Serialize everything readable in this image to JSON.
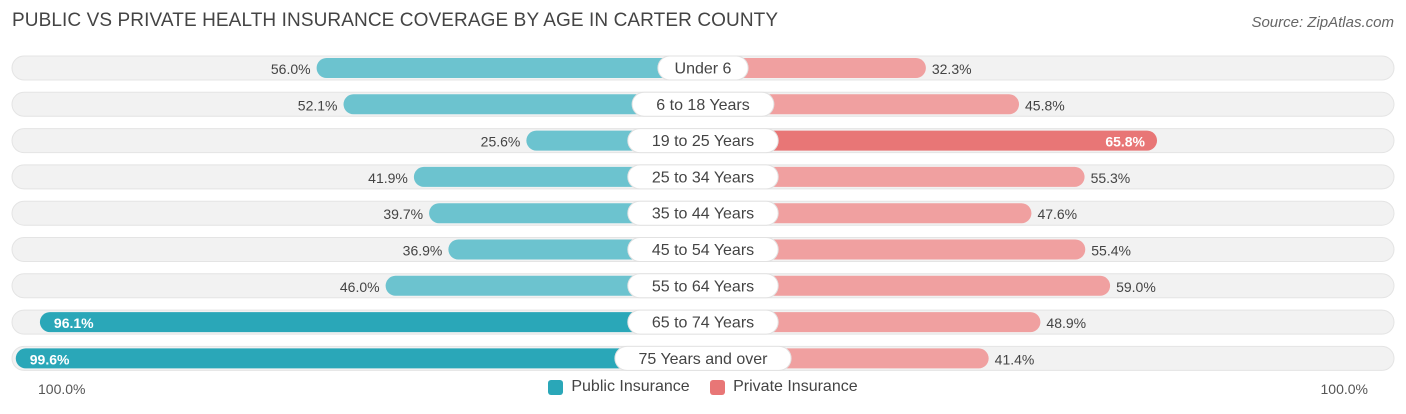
{
  "header": {
    "title": "PUBLIC VS PRIVATE HEALTH INSURANCE COVERAGE BY AGE IN CARTER COUNTY",
    "source": "Source: ZipAtlas.com"
  },
  "axis": {
    "left_label": "100.0%",
    "right_label": "100.0%"
  },
  "legend": {
    "public_label": "Public Insurance",
    "private_label": "Private Insurance"
  },
  "colors": {
    "public": "#6cc3cf",
    "public_strong": "#2aa7b8",
    "private": "#f0a0a0",
    "private_strong": "#e87676",
    "track": "#f2f2f2"
  },
  "chart_data": {
    "type": "bar",
    "orientation": "horizontal-diverging",
    "title": "PUBLIC VS PRIVATE HEALTH INSURANCE COVERAGE BY AGE IN CARTER COUNTY",
    "categories": [
      "Under 6",
      "6 to 18 Years",
      "19 to 25 Years",
      "25 to 34 Years",
      "35 to 44 Years",
      "45 to 54 Years",
      "55 to 64 Years",
      "65 to 74 Years",
      "75 Years and over"
    ],
    "series": [
      {
        "name": "Public Insurance",
        "values": [
          56.0,
          52.1,
          25.6,
          41.9,
          39.7,
          36.9,
          46.0,
          96.1,
          99.6
        ],
        "labels": [
          "56.0%",
          "52.1%",
          "25.6%",
          "41.9%",
          "39.7%",
          "36.9%",
          "46.0%",
          "96.1%",
          "99.6%"
        ]
      },
      {
        "name": "Private Insurance",
        "values": [
          32.3,
          45.8,
          65.8,
          55.3,
          47.6,
          55.4,
          59.0,
          48.9,
          41.4
        ],
        "labels": [
          "32.3%",
          "45.8%",
          "65.8%",
          "55.3%",
          "47.6%",
          "55.4%",
          "59.0%",
          "48.9%",
          "41.4%"
        ]
      }
    ],
    "xlim": [
      0,
      100
    ],
    "legend_position": "bottom-center"
  }
}
